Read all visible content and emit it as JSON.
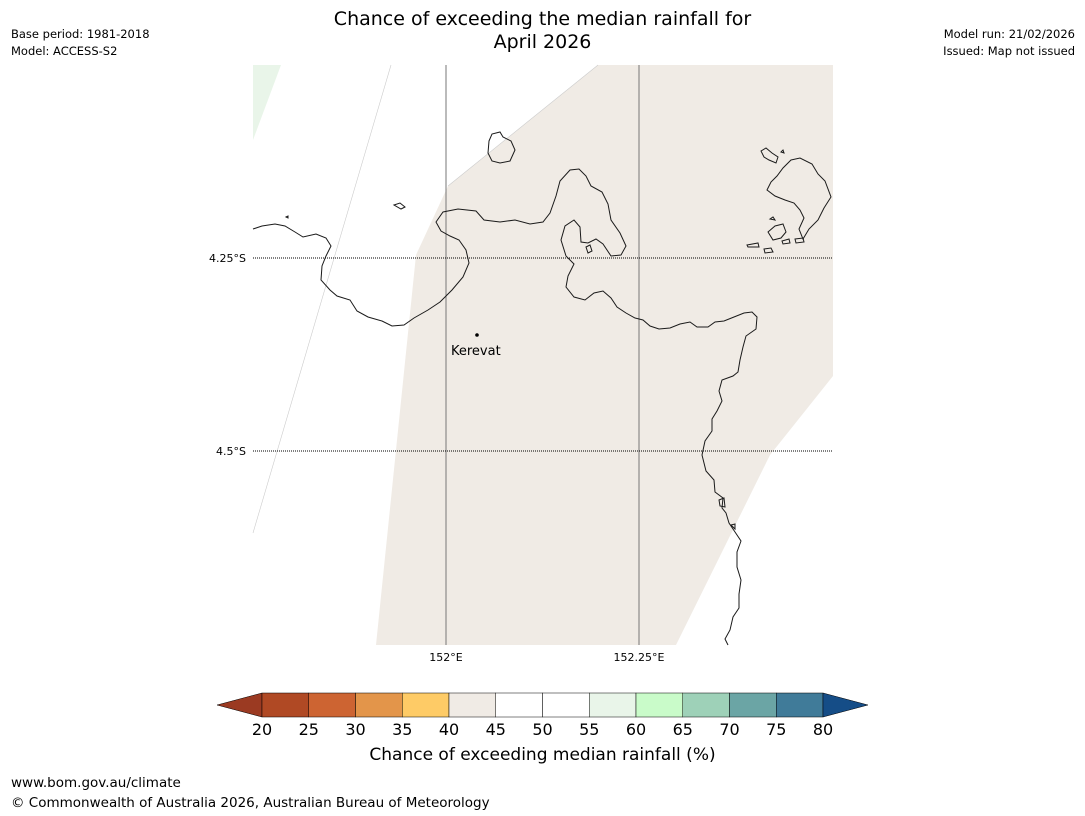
{
  "title_line1": "Chance of exceeding the median rainfall for",
  "title_line2": "April 2026",
  "meta_left": {
    "base_period": "Base period: 1981-2018",
    "model": "Model: ACCESS-S2"
  },
  "meta_right": {
    "model_run": "Model run: 21/02/2026",
    "issued": "Issued: Map not issued"
  },
  "map": {
    "place_label": "Kerevat",
    "lat_labels": [
      "4.25°S",
      "4.5°S"
    ],
    "lon_labels": [
      "152°E",
      "152.25°E"
    ],
    "fill_colors": {
      "band_40_45": "#f0ebe5",
      "band_55_60": "#e9f5e9"
    }
  },
  "colorbar": {
    "ticks": [
      "20",
      "25",
      "30",
      "35",
      "40",
      "45",
      "50",
      "55",
      "60",
      "65",
      "70",
      "75",
      "80"
    ],
    "under_color": "#9b3a22",
    "over_color": "#154d87",
    "colors": [
      "#b04924",
      "#cd6432",
      "#e3954a",
      "#fecb66",
      "#f0ebe5",
      "#ffffff",
      "#ffffff",
      "#e9f5e9",
      "#c9fbc9",
      "#9ed1b8",
      "#6ba5a5",
      "#407b99"
    ],
    "label": "Chance of exceeding median rainfall (%)"
  },
  "footer": {
    "url": "www.bom.gov.au/climate",
    "copyright": "© Commonwealth of Australia 2026, Australian Bureau of Meteorology"
  }
}
